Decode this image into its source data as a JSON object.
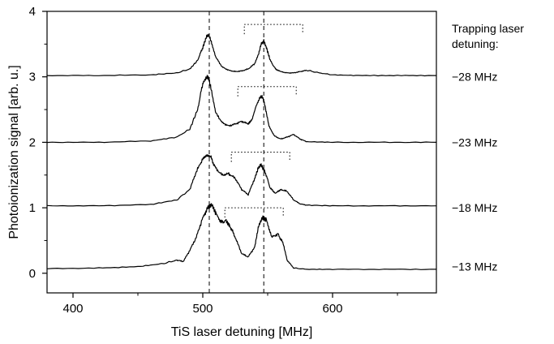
{
  "chart_data": {
    "type": "line",
    "xlabel": "TiS laser detuning [MHz]",
    "ylabel": "Photoionization signal [arb. u.]",
    "xlim": [
      380,
      680
    ],
    "ylim": [
      -0.3,
      4
    ],
    "x_ticks": [
      400,
      500,
      600
    ],
    "y_ticks": [
      0,
      1,
      2,
      3,
      4
    ],
    "legend_title": "Trapping laser\ndetuning:",
    "series": [
      {
        "name": "−28 MHz",
        "label_y": 3.0,
        "x": [
          380,
          420,
          460,
          480,
          490,
          496,
          500,
          503,
          505,
          507,
          510,
          515,
          520,
          525,
          530,
          535,
          540,
          543,
          545,
          547,
          549,
          552,
          556,
          560,
          565,
          570,
          575,
          580,
          590,
          600,
          620,
          650,
          680
        ],
        "y": [
          3.02,
          3.02,
          3.03,
          3.06,
          3.12,
          3.25,
          3.45,
          3.62,
          3.63,
          3.5,
          3.3,
          3.15,
          3.1,
          3.08,
          3.09,
          3.12,
          3.2,
          3.35,
          3.5,
          3.55,
          3.45,
          3.25,
          3.12,
          3.08,
          3.06,
          3.06,
          3.08,
          3.1,
          3.06,
          3.03,
          3.02,
          3.02,
          3.02
        ]
      },
      {
        "name": "−23 MHz",
        "label_y": 2.0,
        "x": [
          380,
          420,
          460,
          480,
          490,
          496,
          500,
          503,
          505,
          507,
          510,
          515,
          520,
          525,
          530,
          535,
          538,
          541,
          544,
          546,
          548,
          551,
          555,
          560,
          565,
          570,
          575,
          580,
          600,
          640,
          680
        ],
        "y": [
          2.0,
          2.0,
          2.02,
          2.08,
          2.2,
          2.5,
          2.9,
          3.0,
          2.95,
          2.75,
          2.45,
          2.3,
          2.25,
          2.28,
          2.32,
          2.28,
          2.35,
          2.55,
          2.68,
          2.7,
          2.55,
          2.25,
          2.1,
          2.05,
          2.08,
          2.12,
          2.05,
          2.01,
          2.0,
          2.0,
          2.0
        ]
      },
      {
        "name": "−18 MHz",
        "label_y": 1.0,
        "x": [
          380,
          420,
          460,
          480,
          490,
          495,
          500,
          503,
          506,
          510,
          515,
          520,
          525,
          530,
          535,
          540,
          543,
          545,
          548,
          552,
          556,
          560,
          565,
          570,
          575,
          580,
          600,
          640,
          680
        ],
        "y": [
          1.03,
          1.03,
          1.05,
          1.12,
          1.28,
          1.55,
          1.75,
          1.8,
          1.78,
          1.6,
          1.5,
          1.52,
          1.45,
          1.28,
          1.2,
          1.45,
          1.62,
          1.65,
          1.55,
          1.3,
          1.22,
          1.28,
          1.25,
          1.12,
          1.06,
          1.04,
          1.03,
          1.03,
          1.03
        ]
      },
      {
        "name": "−13 MHz",
        "label_y": 0.1,
        "x": [
          380,
          420,
          450,
          470,
          480,
          485,
          490,
          495,
          500,
          504,
          507,
          510,
          514,
          518,
          521,
          525,
          530,
          535,
          540,
          543,
          546,
          549,
          553,
          558,
          562,
          565,
          570,
          580,
          600,
          640,
          680
        ],
        "y": [
          0.07,
          0.08,
          0.1,
          0.15,
          0.2,
          0.18,
          0.35,
          0.55,
          0.85,
          1.0,
          1.05,
          0.92,
          0.78,
          0.8,
          0.72,
          0.55,
          0.3,
          0.25,
          0.4,
          0.72,
          0.85,
          0.82,
          0.55,
          0.6,
          0.45,
          0.2,
          0.08,
          0.06,
          0.06,
          0.06,
          0.06
        ]
      }
    ],
    "reference_lines_x": [
      505,
      547
    ],
    "dotted_brackets": [
      {
        "x1": 532,
        "x2": 577,
        "y": 3.8
      },
      {
        "x1": 527,
        "x2": 572,
        "y": 2.85
      },
      {
        "x1": 522,
        "x2": 567,
        "y": 1.85
      },
      {
        "x1": 517,
        "x2": 562,
        "y": 1.0
      }
    ],
    "grid": false,
    "legend_position": "right"
  }
}
